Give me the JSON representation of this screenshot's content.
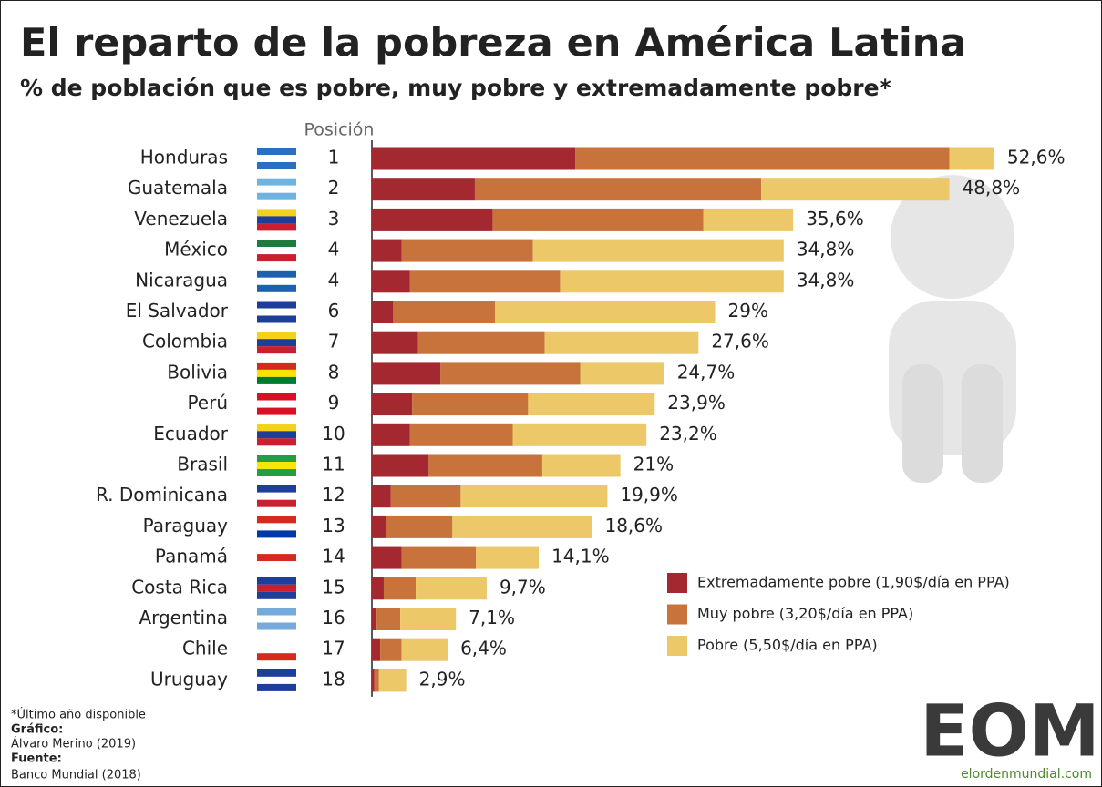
{
  "chart_data": {
    "type": "stacked-bar",
    "title": "El reparto de la pobreza en América Latina",
    "subtitle": "% de población que es pobre, muy pobre y extremadamente pobre*",
    "rank_header": "Posición",
    "categories": [
      "Honduras",
      "Guatemala",
      "Venezuela",
      "México",
      "Nicaragua",
      "El Salvador",
      "Colombia",
      "Bolivia",
      "Perú",
      "Ecuador",
      "Brasil",
      "R. Dominicana",
      "Paraguay",
      "Panamá",
      "Costa Rica",
      "Argentina",
      "Chile",
      "Uruguay"
    ],
    "ranks": [
      1,
      2,
      3,
      4,
      4,
      6,
      7,
      8,
      9,
      10,
      11,
      12,
      13,
      14,
      15,
      16,
      17,
      18
    ],
    "series": [
      {
        "name": "Extremadamente pobre (1,90$/día en PPA)",
        "color": "#a4282f",
        "values": [
          17.2,
          8.7,
          10.2,
          2.5,
          3.2,
          1.8,
          3.9,
          5.8,
          3.4,
          3.2,
          4.8,
          1.6,
          1.2,
          2.5,
          1.0,
          0.4,
          0.7,
          0.2
        ]
      },
      {
        "name": "Muy pobre (3,20$/día en PPA)",
        "color": "#c8733c",
        "values": [
          31.6,
          24.2,
          17.8,
          11.1,
          12.7,
          8.6,
          10.7,
          11.8,
          9.8,
          8.7,
          9.6,
          5.9,
          5.6,
          6.3,
          2.7,
          2.0,
          1.8,
          0.4
        ]
      },
      {
        "name": "Pobre (5,50$/día en PPA)",
        "color": "#ecc869",
        "values": [
          3.8,
          15.9,
          7.6,
          21.2,
          18.9,
          18.6,
          13.0,
          7.1,
          10.7,
          11.3,
          6.6,
          12.4,
          11.8,
          5.3,
          6.0,
          4.7,
          3.9,
          2.3
        ]
      }
    ],
    "totals": [
      52.6,
      48.8,
      35.6,
      34.8,
      34.8,
      29,
      27.6,
      24.7,
      23.9,
      23.2,
      21,
      19.9,
      18.6,
      14.1,
      9.7,
      7.1,
      6.4,
      2.9
    ],
    "total_labels": [
      "52,6%",
      "48,8%",
      "35,6%",
      "34,8%",
      "34,8%",
      "29%",
      "27,6%",
      "24,7%",
      "23,9%",
      "23,2%",
      "21%",
      "19,9%",
      "18,6%",
      "14,1%",
      "9,7%",
      "7,1%",
      "6,4%",
      "2,9%"
    ],
    "xlim": [
      0,
      60
    ]
  },
  "footer": {
    "note": "*Último año disponible",
    "graphic_label": "Gráfico:",
    "graphic": "Álvaro Merino (2019)",
    "source_label": "Fuente:",
    "source": "Banco Mundial (2018)"
  },
  "logo": {
    "text": "EOM",
    "url": "elordenmundial.com"
  }
}
